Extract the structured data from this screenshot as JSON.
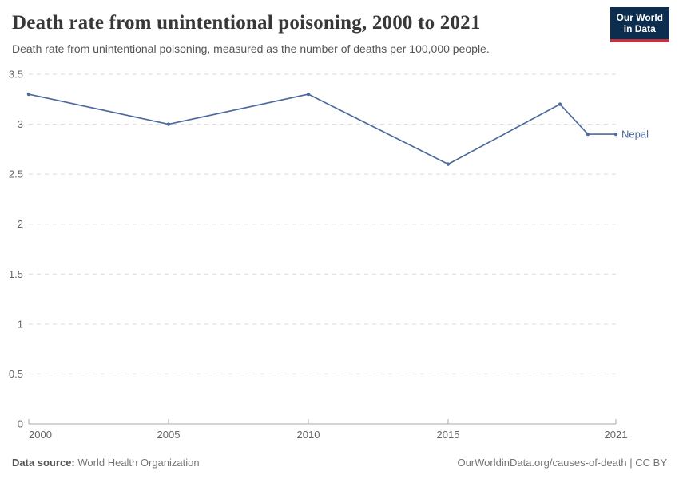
{
  "header": {
    "title": "Death rate from unintentional poisoning, 2000 to 2021",
    "subtitle": "Death rate from unintentional poisoning, measured as the number of deaths per 100,000 people.",
    "logo": {
      "line1": "Our World",
      "line2": "in Data"
    }
  },
  "chart_data": {
    "type": "line",
    "title": "Death rate from unintentional poisoning, 2000 to 2021",
    "xlabel": "",
    "ylabel": "",
    "xlim": [
      2000,
      2021
    ],
    "ylim": [
      0,
      3.5
    ],
    "xticks": [
      2000,
      2005,
      2010,
      2015,
      2021
    ],
    "yticks": [
      0,
      0.5,
      1,
      1.5,
      2,
      2.5,
      3,
      3.5
    ],
    "grid": "horizontal-dashed",
    "legend_position": "end-of-line-label",
    "series": [
      {
        "name": "Nepal",
        "color": "#4c6a9c",
        "x": [
          2000,
          2005,
          2010,
          2015,
          2019,
          2020,
          2021
        ],
        "values": [
          3.3,
          3.0,
          3.3,
          2.6,
          3.2,
          2.9,
          2.9
        ]
      }
    ]
  },
  "footer": {
    "source_label": "Data source:",
    "source_value": "World Health Organization",
    "attribution": "OurWorldinData.org/causes-of-death | CC BY"
  },
  "colors": {
    "line": "#4c6a9c",
    "grid": "#dadada",
    "axis": "#a8a8a8",
    "tick_text": "#666666",
    "logo_bg": "#0d2d4e",
    "logo_stripe": "#c0333e"
  }
}
